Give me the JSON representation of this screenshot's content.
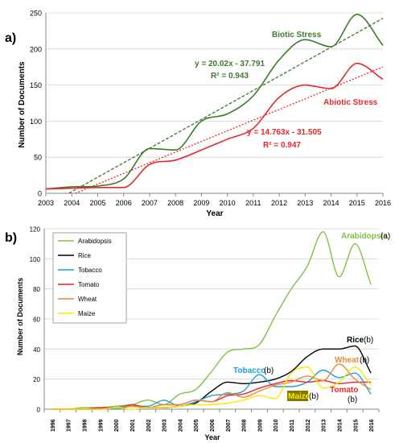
{
  "chart_data": [
    {
      "type": "line",
      "panel_label": "a)",
      "xlabel": "Year",
      "ylabel": "Number of Documents",
      "xlim": [
        2003,
        2016
      ],
      "ylim": [
        0,
        250
      ],
      "x_ticks": [
        2003,
        2004,
        2005,
        2006,
        2007,
        2008,
        2009,
        2010,
        2011,
        2012,
        2013,
        2014,
        2015,
        2016
      ],
      "y_ticks": [
        0,
        50,
        100,
        150,
        200,
        250
      ],
      "grid": true,
      "x": [
        2003,
        2004,
        2005,
        2006,
        2007,
        2008,
        2009,
        2010,
        2011,
        2012,
        2013,
        2014,
        2015,
        2016
      ],
      "series": [
        {
          "name": "Biotic Stress",
          "color": "#3e7a2e",
          "values": [
            6,
            9,
            10,
            20,
            62,
            60,
            100,
            110,
            135,
            185,
            213,
            203,
            248,
            205
          ],
          "trendline": {
            "slope": 20.02,
            "intercept": -37.791,
            "equation": "y = 20.02x - 37.791",
            "r2": "R² = 0.943"
          }
        },
        {
          "name": "Abiotic Stress",
          "color": "#e8262b",
          "values": [
            6,
            7,
            8,
            8,
            40,
            46,
            60,
            75,
            90,
            133,
            150,
            145,
            180,
            158
          ],
          "trendline": {
            "slope": 14.763,
            "intercept": -31.505,
            "equation": "y = 14.763x - 31.505",
            "r2": "R² = 0.947"
          }
        }
      ]
    },
    {
      "type": "line",
      "panel_label": "b)",
      "xlabel": "Year",
      "ylabel": "Number of Documents",
      "ylim": [
        0,
        120
      ],
      "y_ticks": [
        0,
        20,
        40,
        60,
        80,
        100,
        120
      ],
      "grid": true,
      "legend_position": "top-left",
      "categories": [
        "1996",
        "1997",
        "1998",
        "1999",
        "2000",
        "2001",
        "2002",
        "2003",
        "2004",
        "2005",
        "2006",
        "2007",
        "2008",
        "2009",
        "2010",
        "2011",
        "2012",
        "2013",
        "2014",
        "2015",
        "2016"
      ],
      "series": [
        {
          "name": "Arabidopsis",
          "color": "#7dc242",
          "label": "Arabidopsis",
          "note": "(a)",
          "values": [
            0,
            0,
            1,
            1,
            2,
            3,
            6,
            3,
            10,
            13,
            25,
            38,
            40,
            43,
            62,
            80,
            95,
            118,
            88,
            110,
            83
          ]
        },
        {
          "name": "Rice",
          "color": "#000000",
          "label": "Rice",
          "note": "(b)",
          "values": [
            0,
            0,
            0,
            0,
            1,
            2,
            1,
            1,
            2,
            4,
            12,
            18,
            17,
            18,
            20,
            25,
            35,
            40,
            40,
            42,
            24
          ]
        },
        {
          "name": "Tobacco",
          "color": "#1e9fd6",
          "label": "Tobacco",
          "note": "(b)",
          "values": [
            0,
            0,
            0,
            1,
            0,
            2,
            2,
            6,
            2,
            5,
            9,
            10,
            12,
            23,
            15,
            15,
            18,
            26,
            21,
            24,
            10
          ]
        },
        {
          "name": "Tomato",
          "color": "#e8262b",
          "label": "Tomato",
          "note": "(b)",
          "values": [
            0,
            0,
            0,
            1,
            1,
            3,
            1,
            3,
            3,
            6,
            5,
            9,
            10,
            14,
            17,
            19,
            18,
            19,
            17,
            18,
            18
          ]
        },
        {
          "name": "Wheat",
          "color": "#e88a38",
          "label": "Wheat",
          "note": "(b)",
          "values": [
            0,
            0,
            0,
            0,
            1,
            2,
            1,
            3,
            3,
            6,
            5,
            11,
            8,
            12,
            16,
            18,
            22,
            19,
            30,
            20,
            13
          ]
        },
        {
          "name": "Maize",
          "color": "#ffe600",
          "label": "Maize",
          "note": "(b)",
          "values": [
            0,
            0,
            0,
            0,
            1,
            0,
            1,
            1,
            2,
            3,
            3,
            4,
            6,
            9,
            7,
            24,
            28,
            14,
            18,
            28,
            16
          ]
        }
      ]
    }
  ]
}
